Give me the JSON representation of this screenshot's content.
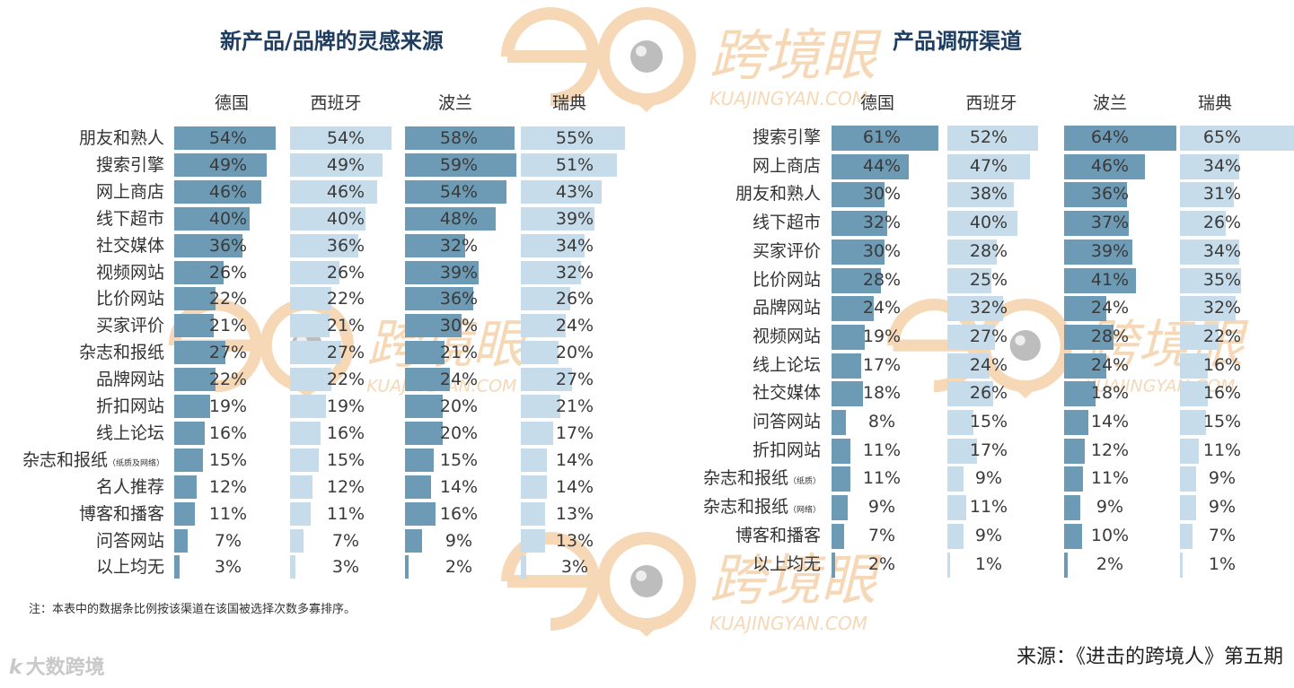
{
  "watermark": {
    "brand": "跨境眼",
    "domain": "KUAJINGYAN.COM"
  },
  "brand_logo": {
    "logo_text": "k",
    "name": "大数跨境"
  },
  "colors": {
    "dark_bar": "#6d9ab4",
    "light_bar": "#c7dcea",
    "title": "#1f3d60",
    "watermark": "#f6d8b6"
  },
  "footnote": "注：本表中的数据条比例按该渠道在该国被选择次数多寡排序。",
  "source": "来源：《进击的跨境人》第五期",
  "chart_data": [
    {
      "type": "table",
      "title": "新产品/品牌的灵感来源",
      "columns": [
        "德国",
        "西班牙",
        "波兰",
        "瑞典"
      ],
      "rows": [
        {
          "label": "朋友和熟人",
          "label_note": "",
          "values": [
            54,
            54,
            58,
            55
          ]
        },
        {
          "label": "搜索引擎",
          "label_note": "",
          "values": [
            49,
            49,
            59,
            51
          ]
        },
        {
          "label": "网上商店",
          "label_note": "",
          "values": [
            46,
            46,
            54,
            43
          ]
        },
        {
          "label": "线下超市",
          "label_note": "",
          "values": [
            40,
            40,
            48,
            39
          ]
        },
        {
          "label": "社交媒体",
          "label_note": "",
          "values": [
            36,
            36,
            32,
            34
          ]
        },
        {
          "label": "视频网站",
          "label_note": "",
          "values": [
            26,
            26,
            39,
            32
          ]
        },
        {
          "label": "比价网站",
          "label_note": "",
          "values": [
            22,
            22,
            36,
            26
          ]
        },
        {
          "label": "买家评价",
          "label_note": "",
          "values": [
            21,
            21,
            30,
            24
          ]
        },
        {
          "label": "杂志和报纸",
          "label_note": "",
          "values": [
            27,
            27,
            21,
            20
          ]
        },
        {
          "label": "品牌网站",
          "label_note": "",
          "values": [
            22,
            22,
            24,
            27
          ]
        },
        {
          "label": "折扣网站",
          "label_note": "",
          "values": [
            19,
            19,
            20,
            21
          ]
        },
        {
          "label": "线上论坛",
          "label_note": "",
          "values": [
            16,
            16,
            20,
            17
          ]
        },
        {
          "label": "杂志和报纸",
          "label_note": "（纸质及网络）",
          "values": [
            15,
            15,
            15,
            14
          ]
        },
        {
          "label": "名人推荐",
          "label_note": "",
          "values": [
            12,
            12,
            14,
            14
          ]
        },
        {
          "label": "博客和播客",
          "label_note": "",
          "values": [
            11,
            11,
            16,
            13
          ]
        },
        {
          "label": "问答网站",
          "label_note": "",
          "values": [
            7,
            7,
            9,
            13
          ]
        },
        {
          "label": "以上均无",
          "label_note": "",
          "values": [
            3,
            3,
            2,
            3
          ]
        }
      ],
      "value_suffix": "%",
      "bar_colors": [
        "dark",
        "light",
        "dark",
        "light"
      ]
    },
    {
      "type": "table",
      "title": "产品调研渠道",
      "columns": [
        "德国",
        "西班牙",
        "波兰",
        "瑞典"
      ],
      "rows": [
        {
          "label": "搜索引擎",
          "label_note": "",
          "values": [
            61,
            52,
            64,
            65
          ]
        },
        {
          "label": "网上商店",
          "label_note": "",
          "values": [
            44,
            47,
            46,
            34
          ]
        },
        {
          "label": "朋友和熟人",
          "label_note": "",
          "values": [
            30,
            38,
            36,
            31
          ]
        },
        {
          "label": "线下超市",
          "label_note": "",
          "values": [
            32,
            40,
            37,
            26
          ]
        },
        {
          "label": "买家评价",
          "label_note": "",
          "values": [
            30,
            28,
            39,
            34
          ]
        },
        {
          "label": "比价网站",
          "label_note": "",
          "values": [
            28,
            25,
            41,
            35
          ]
        },
        {
          "label": "品牌网站",
          "label_note": "",
          "values": [
            24,
            32,
            24,
            32
          ]
        },
        {
          "label": "视频网站",
          "label_note": "",
          "values": [
            19,
            27,
            28,
            22
          ]
        },
        {
          "label": "线上论坛",
          "label_note": "",
          "values": [
            17,
            24,
            24,
            16
          ]
        },
        {
          "label": "社交媒体",
          "label_note": "",
          "values": [
            18,
            26,
            18,
            16
          ]
        },
        {
          "label": "问答网站",
          "label_note": "",
          "values": [
            8,
            15,
            14,
            15
          ]
        },
        {
          "label": "折扣网站",
          "label_note": "",
          "values": [
            11,
            17,
            12,
            11
          ]
        },
        {
          "label": "杂志和报纸",
          "label_note": "（纸质）",
          "values": [
            11,
            9,
            11,
            9
          ]
        },
        {
          "label": "杂志和报纸",
          "label_note": "（网络）",
          "values": [
            9,
            11,
            9,
            9
          ]
        },
        {
          "label": "博客和播客",
          "label_note": "",
          "values": [
            7,
            9,
            10,
            7
          ]
        },
        {
          "label": "以上均无",
          "label_note": "",
          "values": [
            2,
            1,
            2,
            1
          ]
        }
      ],
      "value_suffix": "%",
      "bar_colors": [
        "dark",
        "light",
        "dark",
        "light"
      ]
    }
  ]
}
